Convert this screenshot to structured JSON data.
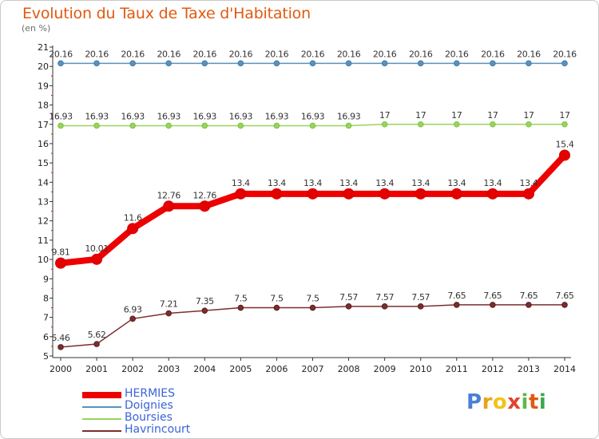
{
  "title": "Evolution du Taux de Taxe d'Habitation",
  "unit_label": "(en %)",
  "logo": {
    "text": "Proxiti",
    "letters": [
      "P",
      "r",
      "o",
      "x",
      "i",
      "t",
      "i"
    ],
    "colors": [
      "#4a7fd4",
      "#e8a31a",
      "#f0c419",
      "#e0442f",
      "#5db84a",
      "#e05a0f",
      "#3da84a"
    ]
  },
  "chart_data": {
    "type": "line",
    "title": "Evolution du Taux de Taxe d'Habitation",
    "ylabel": "(en %)",
    "xlabel": "",
    "x": [
      2000,
      2001,
      2002,
      2003,
      2004,
      2005,
      2006,
      2007,
      2008,
      2009,
      2010,
      2011,
      2012,
      2013,
      2014
    ],
    "ylim": [
      5,
      21
    ],
    "yticks": [
      5,
      6,
      7,
      8,
      9,
      10,
      11,
      12,
      13,
      14,
      15,
      16,
      17,
      18,
      19,
      20,
      21
    ],
    "grid": false,
    "legend_position": "bottom-left",
    "series": [
      {
        "name": "HERMIES",
        "color": "#ee0000",
        "marker": "#d40000",
        "width": 8,
        "values": [
          9.81,
          10.01,
          11.6,
          12.76,
          12.76,
          13.4,
          13.4,
          13.4,
          13.4,
          13.4,
          13.4,
          13.4,
          13.4,
          13.4,
          15.4
        ],
        "labels": [
          "9.81",
          "10.01",
          "11.6",
          "12.76",
          "12.76",
          "13.4",
          "13.4",
          "13.4",
          "13.4",
          "13.4",
          "13.4",
          "13.4",
          "13.4",
          "13.4",
          "15.4"
        ]
      },
      {
        "name": "Doignies",
        "color": "#5a92bd",
        "marker": "#3f7fb0",
        "width": 1.5,
        "values": [
          20.16,
          20.16,
          20.16,
          20.16,
          20.16,
          20.16,
          20.16,
          20.16,
          20.16,
          20.16,
          20.16,
          20.16,
          20.16,
          20.16,
          20.16
        ],
        "labels": [
          "20.16",
          "20.16",
          "20.16",
          "20.16",
          "20.16",
          "20.16",
          "20.16",
          "20.16",
          "20.16",
          "20.16",
          "20.16",
          "20.16",
          "20.16",
          "20.16",
          "20.16"
        ]
      },
      {
        "name": "Boursies",
        "color": "#9ad35c",
        "marker": "#7cc43e",
        "width": 1.5,
        "values": [
          16.93,
          16.93,
          16.93,
          16.93,
          16.93,
          16.93,
          16.93,
          16.93,
          16.93,
          17,
          17,
          17,
          17,
          17,
          17
        ],
        "labels": [
          "16.93",
          "16.93",
          "16.93",
          "16.93",
          "16.93",
          "16.93",
          "16.93",
          "16.93",
          "16.93",
          "17",
          "17",
          "17",
          "17",
          "17",
          "17"
        ]
      },
      {
        "name": "Havrincourt",
        "color": "#7a2e2e",
        "marker": "#5e1c1c",
        "width": 1.5,
        "values": [
          5.46,
          5.62,
          6.93,
          7.21,
          7.35,
          7.5,
          7.5,
          7.5,
          7.57,
          7.57,
          7.57,
          7.65,
          7.65,
          7.65,
          7.65
        ],
        "labels": [
          "5.46",
          "5.62",
          "6.93",
          "7.21",
          "7.35",
          "7.5",
          "7.5",
          "7.5",
          "7.57",
          "7.57",
          "7.57",
          "7.65",
          "7.65",
          "7.65",
          "7.65"
        ]
      }
    ],
    "draw_order": [
      1,
      2,
      3,
      0
    ]
  }
}
